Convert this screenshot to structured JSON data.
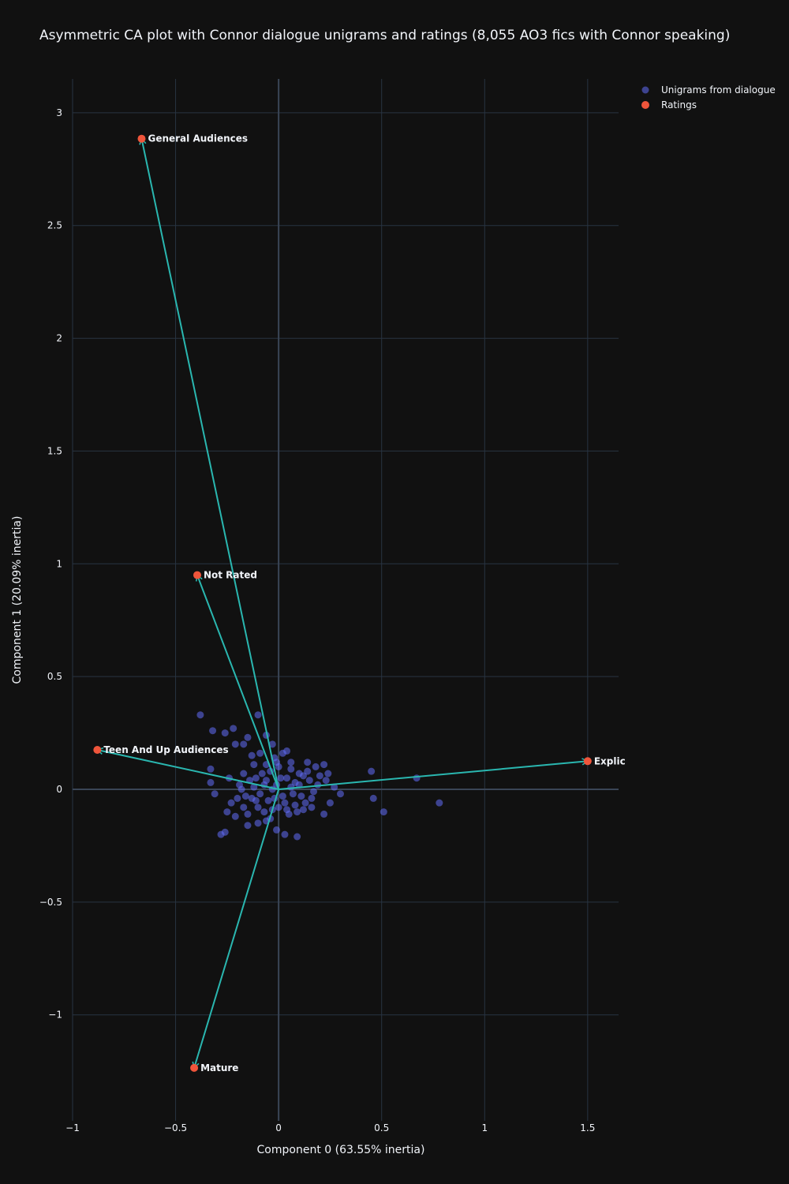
{
  "colors": {
    "background": "#111111",
    "grid": "#283442",
    "zeroline": "#3a4556",
    "text": "#f2f5fa",
    "unigrams": "#636efa",
    "ratings": "#ef553b",
    "arrows": "#2ab7b0"
  },
  "chart_data": {
    "type": "scatter",
    "title": "Asymmetric CA plot with Connor dialogue unigrams and ratings (8,055 AO3 fics with Connor speaking)",
    "xlabel": "Component 0 (63.55% inertia)",
    "ylabel": "Component 1 (20.09% inertia)",
    "xlim": [
      -1.0,
      1.65
    ],
    "ylim": [
      -1.47,
      3.15
    ],
    "xticks": [
      {
        "value": -1,
        "label": "−1"
      },
      {
        "value": -0.5,
        "label": "−0.5"
      },
      {
        "value": 0,
        "label": "0"
      },
      {
        "value": 0.5,
        "label": "0.5"
      },
      {
        "value": 1,
        "label": "1"
      },
      {
        "value": 1.5,
        "label": "1.5"
      }
    ],
    "yticks": [
      {
        "value": -1,
        "label": "−1"
      },
      {
        "value": -0.5,
        "label": "−0.5"
      },
      {
        "value": 0,
        "label": "0"
      },
      {
        "value": 0.5,
        "label": "0.5"
      },
      {
        "value": 1,
        "label": "1"
      },
      {
        "value": 1.5,
        "label": "1.5"
      },
      {
        "value": 2,
        "label": "2"
      },
      {
        "value": 2.5,
        "label": "2.5"
      },
      {
        "value": 3,
        "label": "3"
      }
    ],
    "grid": true,
    "legend_position": "top-right",
    "series": [
      {
        "name": "Unigrams from dialogue",
        "marker": "circle",
        "opacity": 0.55,
        "points": [
          [
            -0.38,
            0.33
          ],
          [
            -0.32,
            0.26
          ],
          [
            -0.26,
            0.25
          ],
          [
            -0.22,
            0.27
          ],
          [
            -0.21,
            0.2
          ],
          [
            -0.17,
            0.2
          ],
          [
            -0.15,
            0.23
          ],
          [
            -0.1,
            0.33
          ],
          [
            -0.06,
            0.24
          ],
          [
            -0.03,
            0.2
          ],
          [
            0.04,
            0.17
          ],
          [
            0.02,
            0.16
          ],
          [
            -0.09,
            0.16
          ],
          [
            -0.13,
            0.15
          ],
          [
            -0.33,
            0.09
          ],
          [
            -0.24,
            0.05
          ],
          [
            -0.33,
            0.03
          ],
          [
            -0.31,
            -0.02
          ],
          [
            -0.23,
            -0.06
          ],
          [
            -0.25,
            -0.1
          ],
          [
            -0.21,
            -0.12
          ],
          [
            -0.26,
            -0.19
          ],
          [
            -0.28,
            -0.2
          ],
          [
            -0.15,
            -0.16
          ],
          [
            -0.1,
            -0.15
          ],
          [
            -0.01,
            -0.18
          ],
          [
            0.03,
            -0.2
          ],
          [
            0.09,
            -0.21
          ],
          [
            0.12,
            -0.09
          ],
          [
            0.16,
            -0.04
          ],
          [
            0.22,
            -0.11
          ],
          [
            0.25,
            -0.06
          ],
          [
            0.3,
            -0.02
          ],
          [
            0.45,
            0.08
          ],
          [
            0.46,
            -0.04
          ],
          [
            0.51,
            -0.1
          ],
          [
            0.67,
            0.05
          ],
          [
            0.78,
            -0.06
          ],
          [
            0.27,
            0.01
          ],
          [
            0.24,
            0.07
          ],
          [
            0.22,
            0.11
          ],
          [
            0.18,
            0.1
          ],
          [
            0.14,
            0.12
          ],
          [
            0.1,
            0.07
          ],
          [
            0.06,
            0.09
          ],
          [
            -0.02,
            0.14
          ],
          [
            -0.06,
            0.11
          ],
          [
            -0.12,
            0.11
          ],
          [
            -0.17,
            0.07
          ],
          [
            -0.14,
            0.04
          ],
          [
            -0.19,
            0.02
          ],
          [
            -0.12,
            0.01
          ],
          [
            -0.16,
            -0.03
          ],
          [
            -0.11,
            -0.05
          ],
          [
            -0.17,
            -0.08
          ],
          [
            -0.07,
            -0.1
          ],
          [
            -0.04,
            -0.13
          ],
          [
            0.0,
            -0.08
          ],
          [
            0.05,
            -0.11
          ],
          [
            0.09,
            -0.1
          ],
          [
            0.11,
            -0.03
          ],
          [
            0.15,
            0.04
          ],
          [
            0.19,
            0.02
          ],
          [
            0.08,
            0.03
          ],
          [
            0.04,
            0.05
          ],
          [
            0.02,
            -0.03
          ],
          [
            -0.03,
            0.0
          ],
          [
            -0.06,
            0.04
          ],
          [
            -0.09,
            -0.02
          ],
          [
            -0.05,
            -0.05
          ],
          [
            -0.01,
            0.02
          ],
          [
            0.03,
            -0.06
          ],
          [
            0.07,
            -0.02
          ],
          [
            0.12,
            0.06
          ],
          [
            -0.08,
            0.07
          ],
          [
            -0.04,
            0.08
          ],
          [
            0.0,
            0.1
          ],
          [
            0.01,
            0.05
          ],
          [
            -0.02,
            -0.04
          ],
          [
            0.06,
            0.01
          ],
          [
            -0.1,
            -0.08
          ],
          [
            -0.13,
            -0.04
          ],
          [
            0.1,
            0.02
          ],
          [
            0.13,
            -0.06
          ],
          [
            -0.07,
            0.02
          ],
          [
            0.17,
            -0.01
          ],
          [
            0.2,
            0.06
          ],
          [
            -0.2,
            -0.04
          ],
          [
            -0.18,
            0.0
          ],
          [
            0.08,
            -0.07
          ],
          [
            -0.11,
            0.05
          ],
          [
            0.04,
            -0.09
          ],
          [
            -0.03,
            -0.09
          ],
          [
            0.14,
            0.08
          ],
          [
            -0.15,
            -0.11
          ],
          [
            0.06,
            0.12
          ],
          [
            -0.01,
            0.12
          ],
          [
            0.23,
            0.04
          ],
          [
            -0.06,
            -0.14
          ],
          [
            0.16,
            -0.08
          ]
        ]
      },
      {
        "name": "Ratings",
        "marker": "circle",
        "points": [
          {
            "label": "General Audiences",
            "x": -0.665,
            "y": 2.885
          },
          {
            "label": "Not Rated",
            "x": -0.395,
            "y": 0.95
          },
          {
            "label": "Teen And Up Audiences",
            "x": -0.88,
            "y": 0.175
          },
          {
            "label": "Explic",
            "x": 1.5,
            "y": 0.125
          },
          {
            "label": "Mature",
            "x": -0.41,
            "y": -1.235
          }
        ]
      }
    ],
    "arrows_from_origin": true
  }
}
